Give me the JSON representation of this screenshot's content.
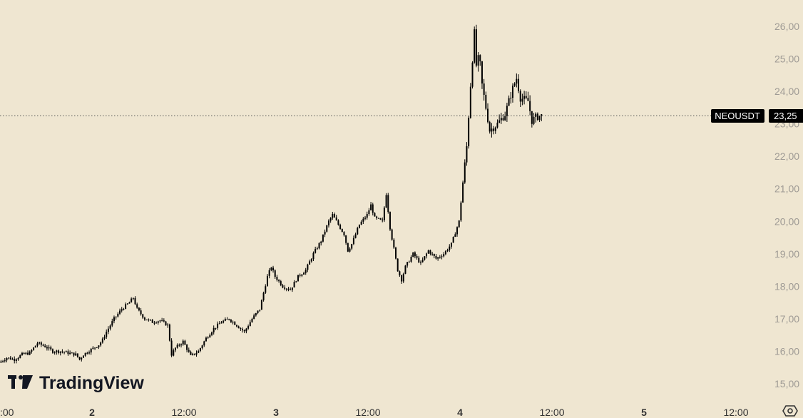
{
  "chart_data": {
    "type": "candlestick",
    "symbol": "NEOUSDT",
    "last_price_label": "23,25",
    "last_price": 23.25,
    "ylim": [
      14.9,
      26.6
    ],
    "y_ticks": [
      {
        "value": 15,
        "label": "15,00"
      },
      {
        "value": 16,
        "label": "16,00"
      },
      {
        "value": 17,
        "label": "17,00"
      },
      {
        "value": 18,
        "label": "18,00"
      },
      {
        "value": 19,
        "label": "19,00"
      },
      {
        "value": 20,
        "label": "20,00"
      },
      {
        "value": 21,
        "label": "21,00"
      },
      {
        "value": 22,
        "label": "22,00"
      },
      {
        "value": 23,
        "label": "23,00"
      },
      {
        "value": 24,
        "label": "24,00"
      },
      {
        "value": 25,
        "label": "25,00"
      },
      {
        "value": 26,
        "label": "26,00"
      }
    ],
    "x_ticks": [
      {
        "t": 0,
        "label": ":00",
        "bold": false
      },
      {
        "t": 12,
        "label": "2",
        "bold": true
      },
      {
        "t": 24,
        "label": "12:00",
        "bold": false
      },
      {
        "t": 36,
        "label": "3",
        "bold": true
      },
      {
        "t": 48,
        "label": "12:00",
        "bold": false
      },
      {
        "t": 60,
        "label": "4",
        "bold": true
      },
      {
        "t": 72,
        "label": "12:00",
        "bold": false
      },
      {
        "t": 84,
        "label": "5",
        "bold": true
      },
      {
        "t": 96,
        "label": "12:00",
        "bold": false
      }
    ],
    "xlim": [
      0,
      104
    ],
    "path": [
      [
        0.0,
        15.65
      ],
      [
        1.0,
        15.8
      ],
      [
        2.0,
        15.75
      ],
      [
        3.0,
        15.9
      ],
      [
        4.0,
        15.95
      ],
      [
        5.0,
        16.25
      ],
      [
        6.0,
        16.15
      ],
      [
        7.0,
        16.0
      ],
      [
        8.0,
        16.0
      ],
      [
        9.0,
        15.95
      ],
      [
        10.0,
        15.9
      ],
      [
        10.5,
        15.75
      ],
      [
        11.0,
        15.9
      ],
      [
        12.0,
        16.05
      ],
      [
        13.0,
        16.2
      ],
      [
        13.5,
        16.35
      ],
      [
        14.0,
        16.6
      ],
      [
        15.0,
        17.0
      ],
      [
        16.0,
        17.3
      ],
      [
        17.0,
        17.5
      ],
      [
        17.5,
        17.65
      ],
      [
        18.0,
        17.3
      ],
      [
        19.0,
        17.0
      ],
      [
        20.0,
        16.9
      ],
      [
        21.0,
        16.95
      ],
      [
        22.0,
        16.8
      ],
      [
        22.5,
        15.9
      ],
      [
        23.0,
        16.1
      ],
      [
        24.0,
        16.3
      ],
      [
        25.0,
        15.85
      ],
      [
        26.0,
        16.0
      ],
      [
        27.0,
        16.4
      ],
      [
        28.0,
        16.7
      ],
      [
        29.0,
        16.9
      ],
      [
        30.0,
        17.0
      ],
      [
        31.0,
        16.8
      ],
      [
        32.0,
        16.6
      ],
      [
        33.0,
        17.0
      ],
      [
        34.0,
        17.3
      ],
      [
        35.0,
        18.3
      ],
      [
        35.5,
        18.6
      ],
      [
        36.0,
        18.3
      ],
      [
        37.0,
        18.0
      ],
      [
        38.0,
        17.9
      ],
      [
        39.0,
        18.3
      ],
      [
        40.0,
        18.5
      ],
      [
        41.0,
        19.0
      ],
      [
        42.0,
        19.4
      ],
      [
        43.0,
        20.0
      ],
      [
        43.5,
        20.2
      ],
      [
        44.0,
        20.0
      ],
      [
        45.0,
        19.6
      ],
      [
        45.5,
        19.1
      ],
      [
        46.0,
        19.3
      ],
      [
        47.0,
        19.9
      ],
      [
        48.0,
        20.2
      ],
      [
        48.5,
        20.5
      ],
      [
        49.0,
        20.1
      ],
      [
        50.0,
        20.0
      ],
      [
        50.5,
        20.85
      ],
      [
        51.0,
        19.8
      ],
      [
        52.0,
        18.5
      ],
      [
        52.5,
        18.2
      ],
      [
        53.0,
        18.6
      ],
      [
        54.0,
        19.0
      ],
      [
        55.0,
        18.7
      ],
      [
        56.0,
        19.1
      ],
      [
        57.0,
        18.85
      ],
      [
        58.0,
        19.0
      ],
      [
        59.0,
        19.3
      ],
      [
        60.0,
        20.0
      ],
      [
        60.5,
        21.2
      ],
      [
        61.0,
        22.3
      ],
      [
        61.5,
        24.2
      ],
      [
        62.0,
        25.8
      ],
      [
        62.3,
        24.6
      ],
      [
        62.6,
        25.2
      ],
      [
        63.0,
        24.2
      ],
      [
        63.5,
        23.5
      ],
      [
        64.0,
        22.8
      ],
      [
        65.0,
        23.0
      ],
      [
        66.0,
        23.3
      ],
      [
        67.0,
        24.1
      ],
      [
        67.5,
        24.4
      ],
      [
        68.0,
        23.8
      ],
      [
        69.0,
        23.7
      ],
      [
        69.5,
        23.1
      ],
      [
        70.0,
        23.2
      ],
      [
        70.5,
        23.25
      ]
    ]
  },
  "branding": {
    "logo_text": "TradingView"
  },
  "icons": {
    "logo_mark": "tradingview-logo-icon",
    "settings": "gear-icon"
  },
  "colors": {
    "background": "#efe6d1",
    "candle": "#000000",
    "tag_bg": "#000000",
    "axis_text": "#9f9b95"
  }
}
